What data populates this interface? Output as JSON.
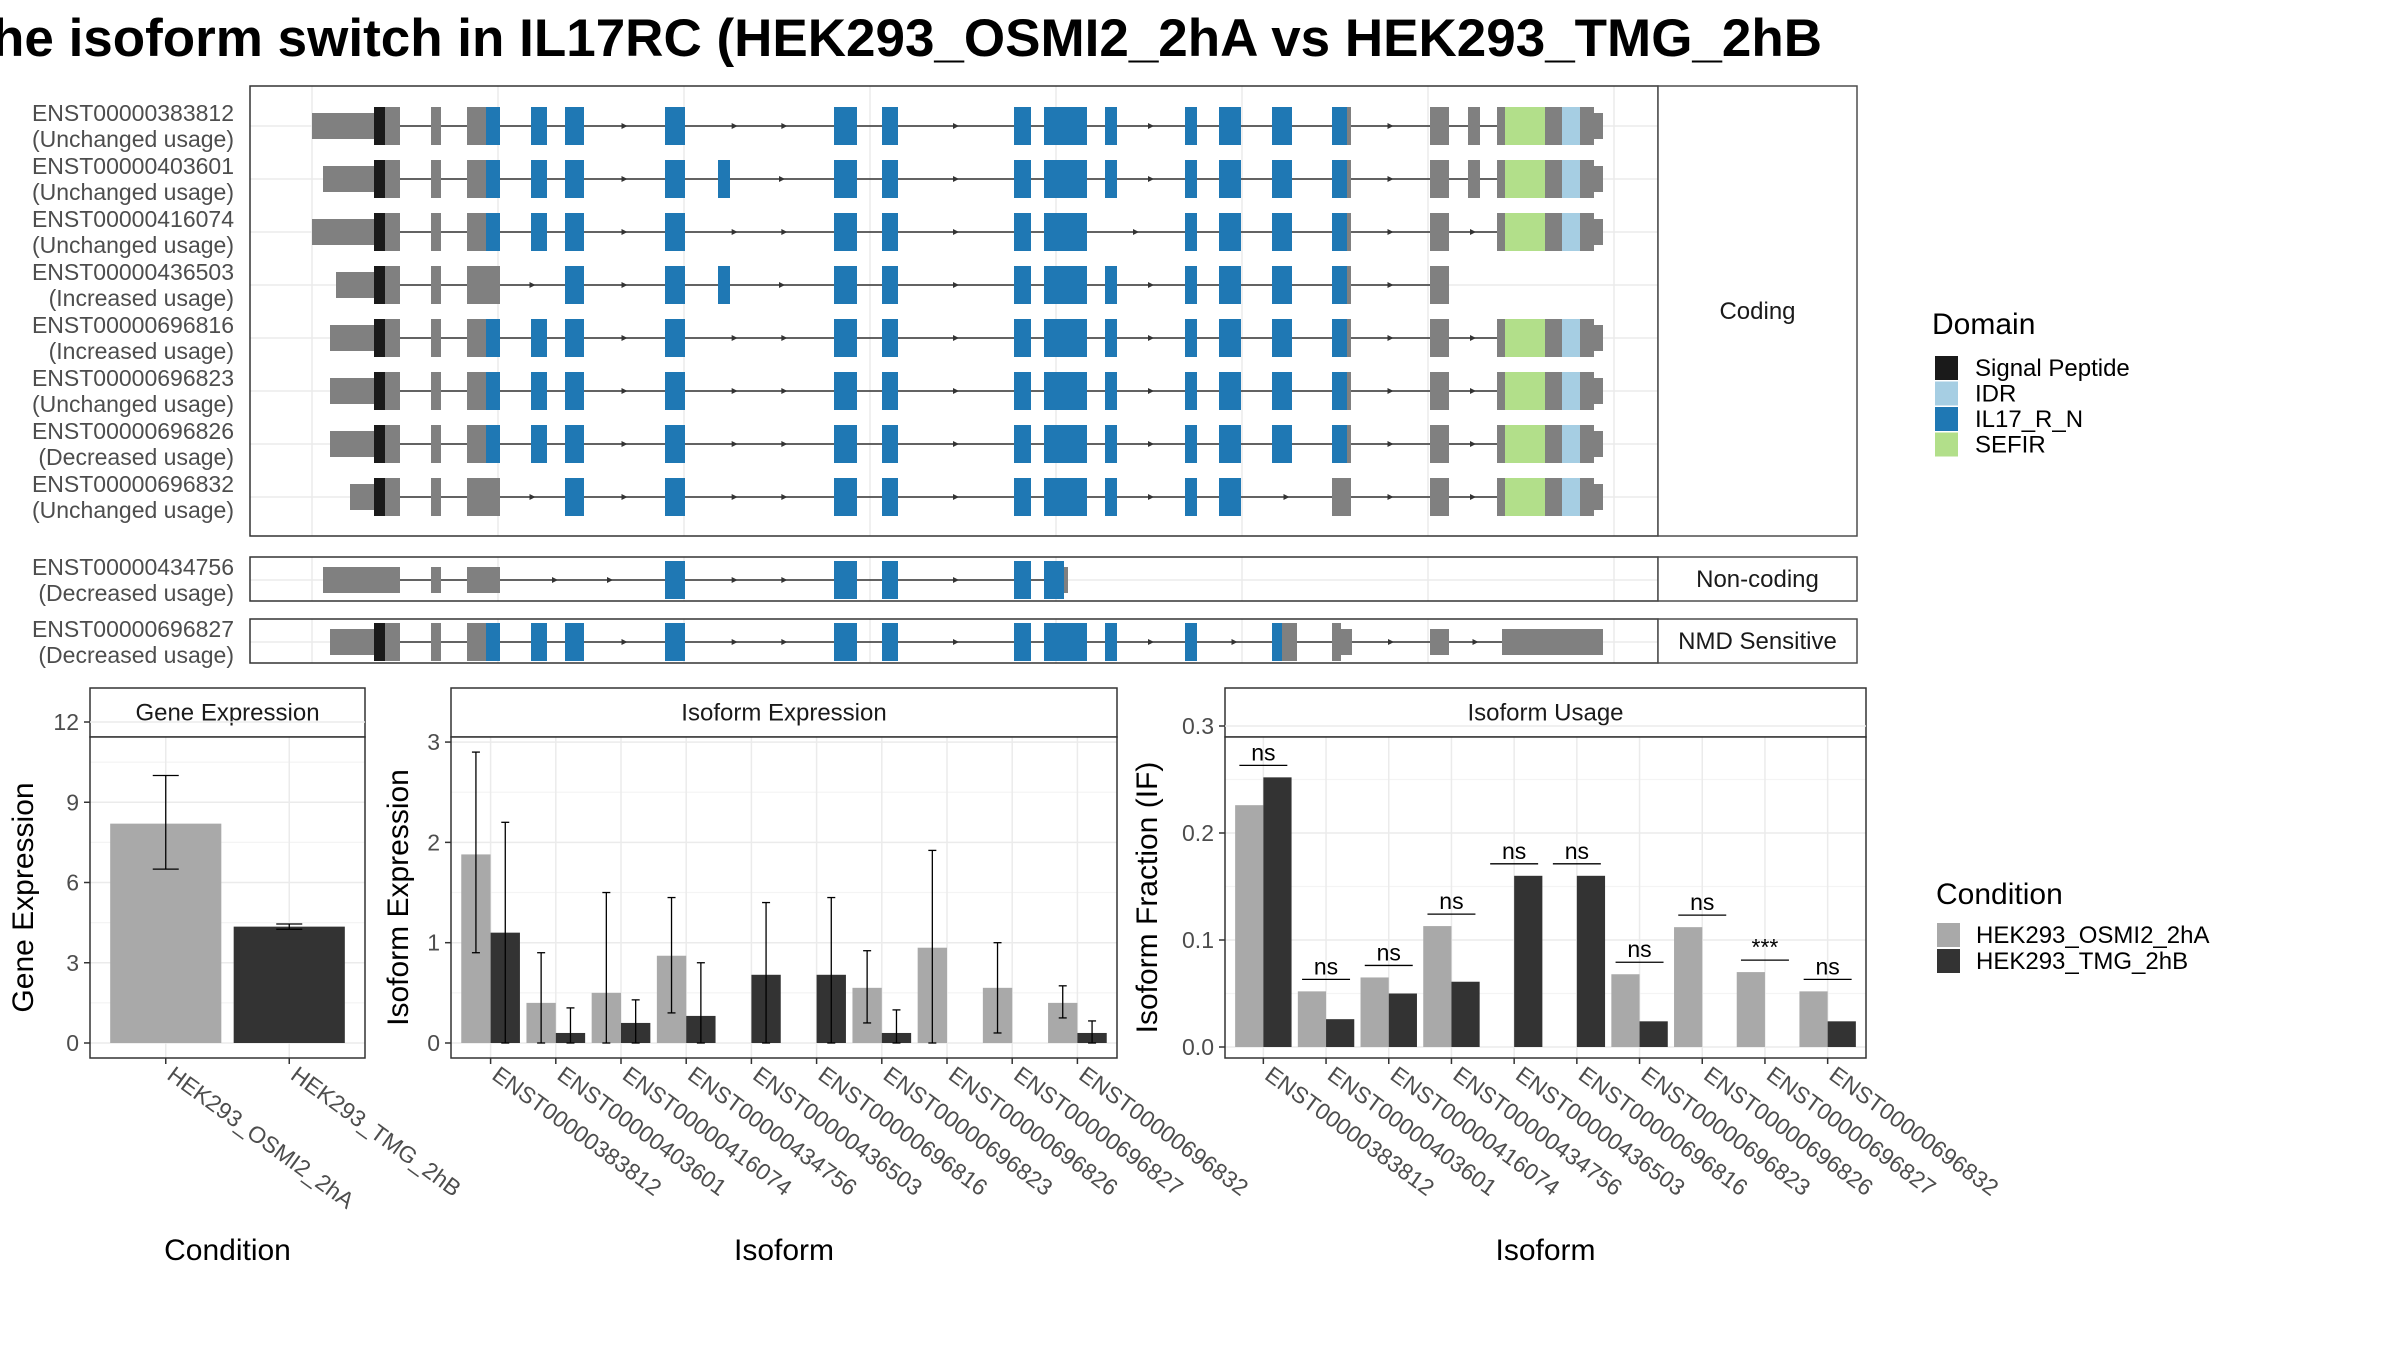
{
  "title": "he isoform switch in IL17RC (HEK293_OSMI2_2hA vs HEK293_TMG_2hB",
  "structure": {
    "facets": [
      {
        "label": "Coding",
        "isoforms": [
          {
            "id": "ENST00000383812",
            "usage": "(Unchanged usage)"
          },
          {
            "id": "ENST00000403601",
            "usage": "(Unchanged usage)"
          },
          {
            "id": "ENST00000416074",
            "usage": "(Unchanged usage)"
          },
          {
            "id": "ENST00000436503",
            "usage": "(Increased usage)"
          },
          {
            "id": "ENST00000696816",
            "usage": "(Increased usage)"
          },
          {
            "id": "ENST00000696823",
            "usage": "(Unchanged usage)"
          },
          {
            "id": "ENST00000696826",
            "usage": "(Decreased usage)"
          },
          {
            "id": "ENST00000696832",
            "usage": "(Unchanged usage)"
          }
        ]
      },
      {
        "label": "Non-coding",
        "isoforms": [
          {
            "id": "ENST00000434756",
            "usage": "(Decreased usage)"
          }
        ]
      },
      {
        "label": "NMD Sensitive",
        "isoforms": [
          {
            "id": "ENST00000696827",
            "usage": "(Decreased usage)"
          }
        ]
      }
    ],
    "domain_legend": {
      "title": "Domain",
      "items": [
        {
          "name": "Signal Peptide",
          "color": "#1a1a1a"
        },
        {
          "name": "IDR",
          "color": "#a6cee3"
        },
        {
          "name": "IL17_R_N",
          "color": "#1f78b4"
        },
        {
          "name": "SEFIR",
          "color": "#b2df8a"
        }
      ]
    },
    "colors": {
      "utr": "#808080",
      "signal": "#1a1a1a",
      "idr": "#a6cee3",
      "il17": "#1f78b4",
      "sefir": "#b2df8a"
    }
  },
  "chart_data": [
    {
      "type": "bar",
      "title": "Gene Expression",
      "xlabel": "Condition",
      "ylabel": "Gene Expression",
      "categories": [
        "HEK293_OSMI2_2hA",
        "HEK293_TMG_2hB"
      ],
      "values": [
        8.2,
        4.35
      ],
      "error_low": [
        6.5,
        4.25
      ],
      "error_high": [
        10.0,
        4.45
      ],
      "bar_colors": [
        "#a9a9a9",
        "#333333"
      ],
      "ylim": [
        0,
        12
      ],
      "yticks": [
        0,
        3,
        6,
        9,
        12
      ]
    },
    {
      "type": "bar",
      "title": "Isoform Expression",
      "xlabel": "Isoform",
      "ylabel": "Isoform Expression",
      "categories": [
        "ENST00000383812",
        "ENST00000403601",
        "ENST00000416074",
        "ENST00000434756",
        "ENST00000436503",
        "ENST00000696816",
        "ENST00000696823",
        "ENST00000696826",
        "ENST00000696827",
        "ENST00000696832"
      ],
      "series": [
        {
          "name": "HEK293_OSMI2_2hA",
          "values": [
            1.88,
            0.4,
            0.5,
            0.87,
            0.0,
            0.0,
            0.55,
            0.95,
            0.55,
            0.4
          ],
          "err_low": [
            0.9,
            0,
            0,
            0.3,
            0,
            0,
            0.2,
            0.0,
            0.1,
            0.25
          ],
          "err_high": [
            2.9,
            0.9,
            1.5,
            1.45,
            0,
            0,
            0.92,
            1.92,
            1.0,
            0.57
          ]
        },
        {
          "name": "HEK293_TMG_2hB",
          "values": [
            1.1,
            0.1,
            0.2,
            0.27,
            0.68,
            0.68,
            0.1,
            0.0,
            0.0,
            0.1
          ],
          "err_low": [
            0.0,
            0,
            0,
            0,
            0,
            0,
            0,
            0,
            0,
            0
          ],
          "err_high": [
            2.2,
            0.35,
            0.43,
            0.8,
            1.4,
            1.45,
            0.33,
            0,
            0,
            0.22
          ]
        }
      ],
      "ylim": [
        0,
        3.2
      ],
      "yticks": [
        0,
        1,
        2,
        3
      ]
    },
    {
      "type": "bar",
      "title": "Isoform Usage",
      "xlabel": "Isoform",
      "ylabel": "Isoform Fraction (IF)",
      "categories": [
        "ENST00000383812",
        "ENST00000403601",
        "ENST00000416074",
        "ENST00000434756",
        "ENST00000436503",
        "ENST00000696816",
        "ENST00000696823",
        "ENST00000696826",
        "ENST00000696827",
        "ENST00000696832"
      ],
      "series": [
        {
          "name": "HEK293_OSMI2_2hA",
          "values": [
            0.226,
            0.052,
            0.065,
            0.113,
            0.0,
            0.0,
            0.068,
            0.112,
            0.07,
            0.052
          ]
        },
        {
          "name": "HEK293_TMG_2hB",
          "values": [
            0.252,
            0.026,
            0.05,
            0.061,
            0.16,
            0.16,
            0.024,
            0.0,
            0.0,
            0.024
          ]
        }
      ],
      "significance": [
        "ns",
        "ns",
        "ns",
        "ns",
        "ns",
        "ns",
        "ns",
        "ns",
        "***",
        "ns"
      ],
      "ylim": [
        0,
        0.3
      ],
      "yticks": [
        0.0,
        0.1,
        0.2,
        0.3
      ]
    }
  ],
  "condition_legend": {
    "title": "Condition",
    "items": [
      {
        "name": "HEK293_OSMI2_2hA",
        "color": "#a9a9a9"
      },
      {
        "name": "HEK293_TMG_2hB",
        "color": "#333333"
      }
    ]
  }
}
